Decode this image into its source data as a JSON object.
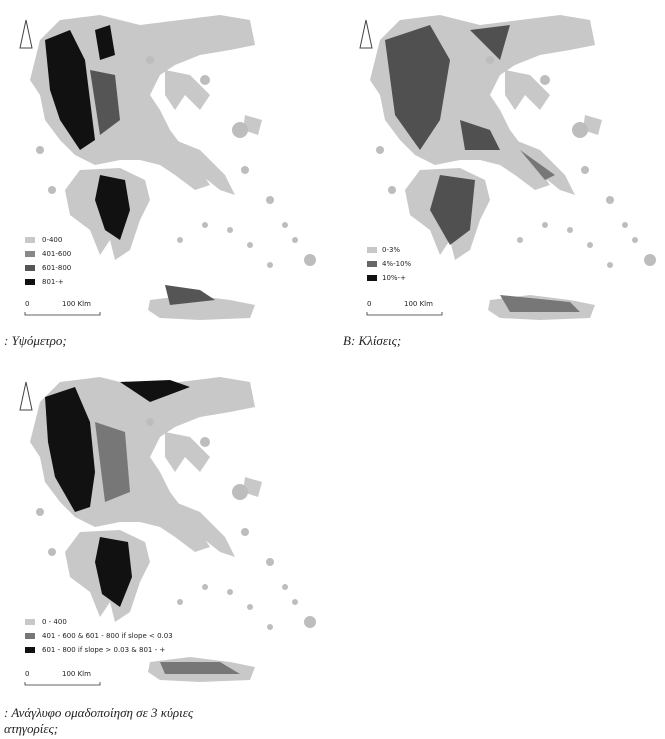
{
  "panels": [
    {
      "legend": [
        "0-400",
        "401-600",
        "601-800",
        "801-+"
      ],
      "scale": [
        "0",
        "100 Klm"
      ],
      "caption": [
        ": Υψόμετρο;"
      ]
    },
    {
      "legend": [
        "0-3%",
        "4%-10%",
        "10%-+"
      ],
      "scale": [
        "0",
        "100 Klm"
      ],
      "caption": [
        "B: Κλίσεις;"
      ]
    },
    {
      "legend": [
        "0 - 400",
        "401 - 600 & 601 - 800 if slope < 0.03",
        "601 - 800 if slope > 0.03 & 801 - +"
      ],
      "scale": [
        "0",
        "100 Klm"
      ],
      "caption": [
        ":  Ανάγλυφο ομαδοποίηση σε 3 κύριες",
        "ατηγορίες;"
      ]
    }
  ]
}
